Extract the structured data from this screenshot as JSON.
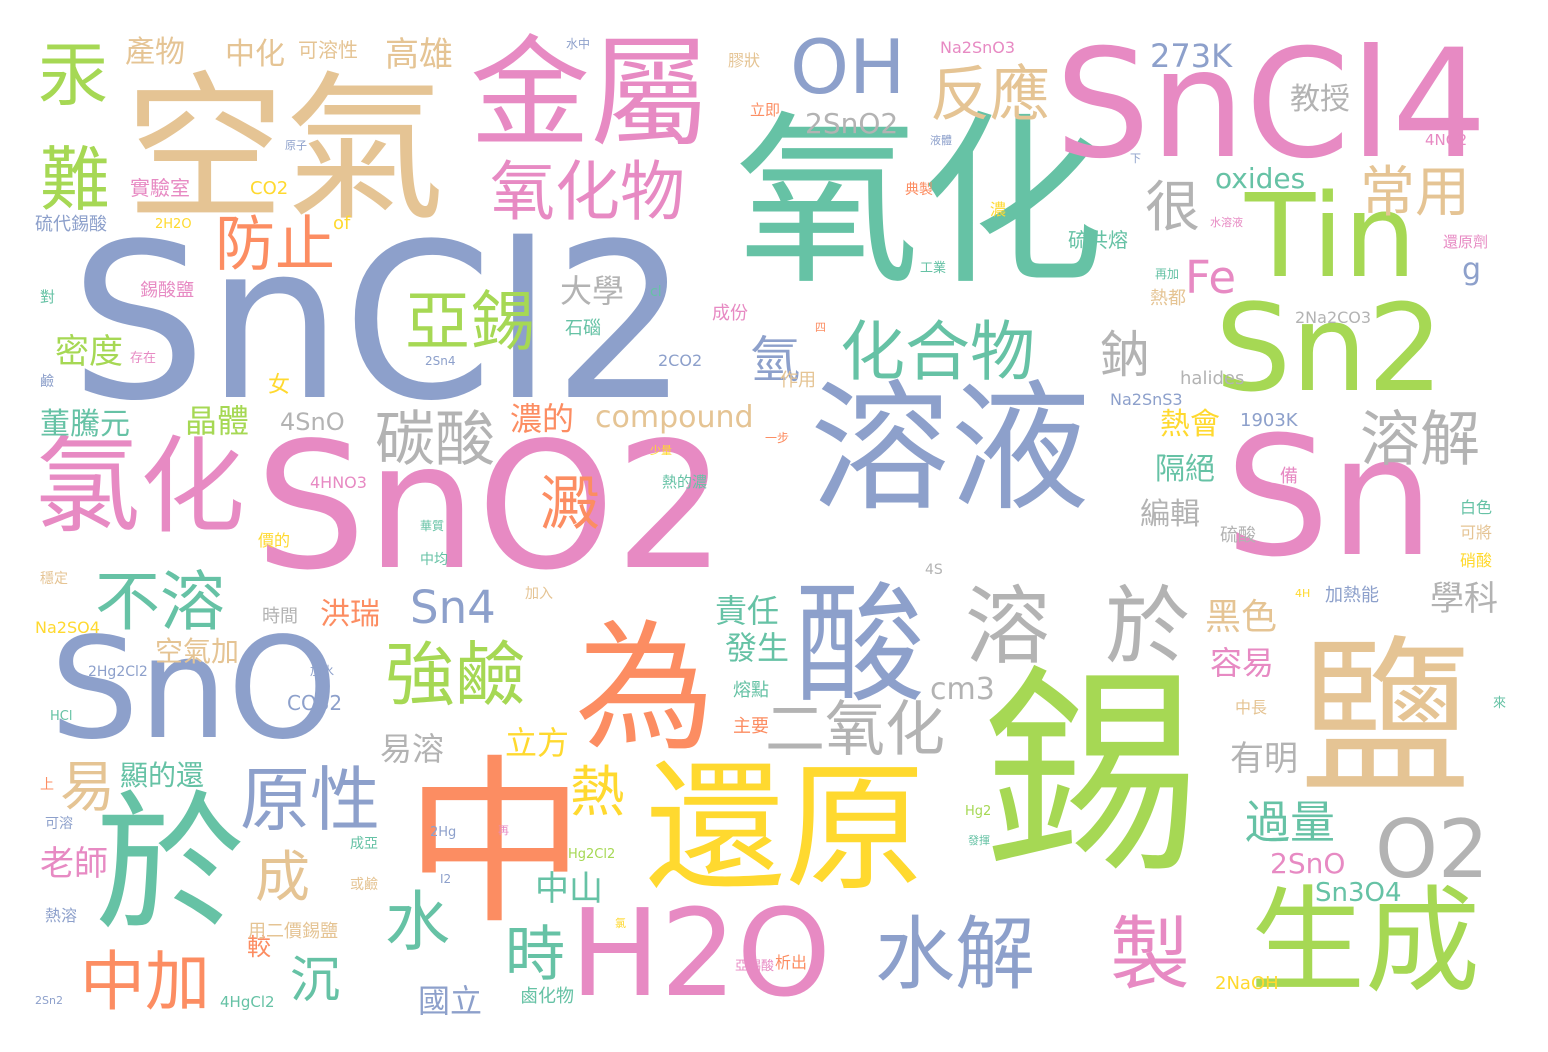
{
  "colors": {
    "background": "#ffffff",
    "palette": [
      "#66c2a5",
      "#fc8d62",
      "#8da0cb",
      "#e78ac3",
      "#a6d854",
      "#ffd92f",
      "#e5c494",
      "#b3b3b3"
    ]
  },
  "words": [
    {
      "text": "SnCl2",
      "color": "#8da0cb"
    },
    {
      "text": "氧化",
      "color": "#66c2a5"
    },
    {
      "text": "SnO2",
      "color": "#e78ac3"
    },
    {
      "text": "錫",
      "color": "#a6d854"
    },
    {
      "text": "空氣",
      "color": "#e5c494"
    },
    {
      "text": "SnCl4",
      "color": "#e78ac3"
    },
    {
      "text": "溶液",
      "color": "#8da0cb"
    },
    {
      "text": "Sn",
      "color": "#e78ac3"
    },
    {
      "text": "還原",
      "color": "#ffd92f"
    },
    {
      "text": "中",
      "color": "#fc8d62"
    },
    {
      "text": "SnO",
      "color": "#8da0cb"
    },
    {
      "text": "鹽",
      "color": "#e5c494"
    },
    {
      "text": "H2O",
      "color": "#e78ac3"
    },
    {
      "text": "於",
      "color": "#66c2a5"
    },
    {
      "text": "為",
      "color": "#fc8d62"
    },
    {
      "text": "金屬",
      "color": "#e78ac3"
    },
    {
      "text": "Tin",
      "color": "#a6d854"
    },
    {
      "text": "Sn2",
      "color": "#a6d854"
    },
    {
      "text": "酸",
      "color": "#8da0cb"
    },
    {
      "text": "生成",
      "color": "#a6d854"
    },
    {
      "text": "OH",
      "color": "#8da0cb"
    },
    {
      "text": "氯化",
      "color": "#e78ac3"
    },
    {
      "text": "溶",
      "color": "#b3b3b3"
    },
    {
      "text": "於",
      "color": "#b3b3b3"
    },
    {
      "text": "O2",
      "color": "#b3b3b3"
    },
    {
      "text": "水解",
      "color": "#8da0cb"
    },
    {
      "text": "氧化物",
      "color": "#e78ac3"
    },
    {
      "text": "化合物",
      "color": "#66c2a5"
    },
    {
      "text": "強鹼",
      "color": "#a6d854"
    },
    {
      "text": "原性",
      "color": "#8da0cb"
    },
    {
      "text": "反應",
      "color": "#e5c494"
    },
    {
      "text": "製",
      "color": "#e78ac3"
    },
    {
      "text": "中加",
      "color": "#fc8d62"
    },
    {
      "text": "亞錫",
      "color": "#a6d854"
    },
    {
      "text": "不溶",
      "color": "#66c2a5"
    },
    {
      "text": "防止",
      "color": "#fc8d62"
    },
    {
      "text": "碳酸",
      "color": "#b3b3b3"
    },
    {
      "text": "溶解",
      "color": "#b3b3b3"
    },
    {
      "text": "二氧化",
      "color": "#b3b3b3"
    },
    {
      "text": "常用",
      "color": "#e5c494"
    },
    {
      "text": "汞",
      "color": "#a6d854"
    },
    {
      "text": "難",
      "color": "#a6d854"
    },
    {
      "text": "澱",
      "color": "#fc8d62"
    },
    {
      "text": "水",
      "color": "#66c2a5"
    },
    {
      "text": "成",
      "color": "#e5c494"
    },
    {
      "text": "易",
      "color": "#e5c494"
    },
    {
      "text": "熱",
      "color": "#ffd92f"
    },
    {
      "text": "時",
      "color": "#66c2a5"
    },
    {
      "text": "沉",
      "color": "#66c2a5"
    },
    {
      "text": "很",
      "color": "#b3b3b3"
    },
    {
      "text": "鈉",
      "color": "#b3b3b3"
    },
    {
      "text": "氫",
      "color": "#8da0cb"
    },
    {
      "text": "Sn4",
      "color": "#8da0cb"
    },
    {
      "text": "Fe",
      "color": "#e78ac3"
    },
    {
      "text": "過量",
      "color": "#66c2a5"
    },
    {
      "text": "273K",
      "color": "#8da0cb"
    },
    {
      "text": "2SnO2",
      "color": "#b3b3b3"
    },
    {
      "text": "oxides",
      "color": "#66c2a5"
    },
    {
      "text": "compound",
      "color": "#e5c494"
    },
    {
      "text": "cm3",
      "color": "#b3b3b3"
    },
    {
      "text": "2SnO",
      "color": "#e78ac3"
    },
    {
      "text": "Sn3O4",
      "color": "#66c2a5"
    },
    {
      "text": "4SnO",
      "color": "#b3b3b3"
    },
    {
      "text": "CO32",
      "color": "#8da0cb"
    },
    {
      "text": "halides",
      "color": "#b3b3b3"
    },
    {
      "text": "1903K",
      "color": "#8da0cb"
    },
    {
      "text": "Na2SnS3",
      "color": "#8da0cb"
    },
    {
      "text": "2Na2CO3",
      "color": "#b3b3b3"
    },
    {
      "text": "Na2SnO3",
      "color": "#e78ac3"
    },
    {
      "text": "4NO2",
      "color": "#e78ac3"
    },
    {
      "text": "4HNO3",
      "color": "#e78ac3"
    },
    {
      "text": "Na2SO4",
      "color": "#ffd92f"
    },
    {
      "text": "2Hg2Cl2",
      "color": "#8da0cb"
    },
    {
      "text": "HCl",
      "color": "#66c2a5"
    },
    {
      "text": "CO2",
      "color": "#ffd92f"
    },
    {
      "text": "2H2O",
      "color": "#ffd92f"
    },
    {
      "text": "of",
      "color": "#ffd92f"
    },
    {
      "text": "cl",
      "color": "#66c2a5"
    },
    {
      "text": "g",
      "color": "#8da0cb"
    },
    {
      "text": "女",
      "color": "#ffd92f"
    },
    {
      "text": "2CO2",
      "color": "#8da0cb"
    },
    {
      "text": "2Sn4",
      "color": "#8da0cb"
    },
    {
      "text": "4S",
      "color": "#b3b3b3"
    },
    {
      "text": "4H",
      "color": "#ffd92f"
    },
    {
      "text": "Hg2",
      "color": "#a6d854"
    },
    {
      "text": "Hg2Cl2",
      "color": "#a6d854"
    },
    {
      "text": "2Hg",
      "color": "#8da0cb"
    },
    {
      "text": "I2",
      "color": "#8da0cb"
    },
    {
      "text": "4HgCl2",
      "color": "#66c2a5"
    },
    {
      "text": "2NaOH",
      "color": "#ffd92f"
    },
    {
      "text": "2Sn2",
      "color": "#8da0cb"
    },
    {
      "text": "產物",
      "color": "#e5c494"
    },
    {
      "text": "中化",
      "color": "#e5c494"
    },
    {
      "text": "可溶性",
      "color": "#e5c494"
    },
    {
      "text": "高雄",
      "color": "#e5c494"
    },
    {
      "text": "教授",
      "color": "#b3b3b3"
    },
    {
      "text": "大學",
      "color": "#b3b3b3"
    },
    {
      "text": "密度",
      "color": "#a6d854"
    },
    {
      "text": "董騰元",
      "color": "#66c2a5"
    },
    {
      "text": "晶體",
      "color": "#a6d854"
    },
    {
      "text": "濃的",
      "color": "#fc8d62"
    },
    {
      "text": "熱會",
      "color": "#ffd92f"
    },
    {
      "text": "隔絕",
      "color": "#66c2a5"
    },
    {
      "text": "編輯",
      "color": "#b3b3b3"
    },
    {
      "text": "洪瑞",
      "color": "#fc8d62"
    },
    {
      "text": "責任",
      "color": "#66c2a5"
    },
    {
      "text": "發生",
      "color": "#66c2a5"
    },
    {
      "text": "黑色",
      "color": "#e5c494"
    },
    {
      "text": "容易",
      "color": "#e78ac3"
    },
    {
      "text": "學科",
      "color": "#b3b3b3"
    },
    {
      "text": "空氣加",
      "color": "#e5c494"
    },
    {
      "text": "易溶",
      "color": "#b3b3b3"
    },
    {
      "text": "立方",
      "color": "#ffd92f"
    },
    {
      "text": "有明",
      "color": "#b3b3b3"
    },
    {
      "text": "顯的還",
      "color": "#66c2a5"
    },
    {
      "text": "老師",
      "color": "#e78ac3"
    },
    {
      "text": "中山",
      "color": "#66c2a5"
    },
    {
      "text": "國立",
      "color": "#8da0cb"
    },
    {
      "text": "較",
      "color": "#fc8d62"
    },
    {
      "text": "實驗室",
      "color": "#e78ac3"
    },
    {
      "text": "硫代錫酸",
      "color": "#8da0cb"
    },
    {
      "text": "錫酸鹽",
      "color": "#e78ac3"
    },
    {
      "text": "硫共熔",
      "color": "#66c2a5"
    },
    {
      "text": "熱都",
      "color": "#e5c494"
    },
    {
      "text": "石碯",
      "color": "#66c2a5"
    },
    {
      "text": "成份",
      "color": "#e78ac3"
    },
    {
      "text": "作用",
      "color": "#e5c494"
    },
    {
      "text": "加熱能",
      "color": "#8da0cb"
    },
    {
      "text": "白色",
      "color": "#66c2a5"
    },
    {
      "text": "可將",
      "color": "#e5c494"
    },
    {
      "text": "硝酸",
      "color": "#ffd92f"
    },
    {
      "text": "硫酸",
      "color": "#b3b3b3"
    },
    {
      "text": "還原劑",
      "color": "#e78ac3"
    },
    {
      "text": "亞錫酸",
      "color": "#e78ac3"
    },
    {
      "text": "鹵化物",
      "color": "#66c2a5"
    },
    {
      "text": "析出",
      "color": "#fc8d62"
    },
    {
      "text": "用二價錫鹽",
      "color": "#e5c494"
    },
    {
      "text": "主要",
      "color": "#fc8d62"
    },
    {
      "text": "熔點",
      "color": "#66c2a5"
    },
    {
      "text": "時間",
      "color": "#b3b3b3"
    },
    {
      "text": "中長",
      "color": "#e5c494"
    },
    {
      "text": "成亞",
      "color": "#66c2a5"
    },
    {
      "text": "或鹼",
      "color": "#e5c494"
    },
    {
      "text": "中均",
      "color": "#66c2a5"
    },
    {
      "text": "加入",
      "color": "#e5c494"
    },
    {
      "text": "穩定",
      "color": "#e5c494"
    },
    {
      "text": "價的",
      "color": "#ffd92f"
    },
    {
      "text": "上",
      "color": "#fc8d62"
    },
    {
      "text": "可溶",
      "color": "#8da0cb"
    },
    {
      "text": "熱溶",
      "color": "#8da0cb"
    },
    {
      "text": "對",
      "color": "#66c2a5"
    },
    {
      "text": "鹼",
      "color": "#8da0cb"
    },
    {
      "text": "存在",
      "color": "#e78ac3"
    },
    {
      "text": "水中",
      "color": "#8da0cb"
    },
    {
      "text": "膠狀",
      "color": "#e5c494"
    },
    {
      "text": "立即",
      "color": "#fc8d62"
    },
    {
      "text": "液體",
      "color": "#8da0cb"
    },
    {
      "text": "原子",
      "color": "#8da0cb"
    },
    {
      "text": "典製",
      "color": "#fc8d62"
    },
    {
      "text": "濃",
      "color": "#ffd92f"
    },
    {
      "text": "工業",
      "color": "#66c2a5"
    },
    {
      "text": "再加",
      "color": "#66c2a5"
    },
    {
      "text": "熱的濃",
      "color": "#66c2a5"
    },
    {
      "text": "一步",
      "color": "#fc8d62"
    },
    {
      "text": "少量",
      "color": "#ffd92f"
    },
    {
      "text": "加水",
      "color": "#8da0cb"
    },
    {
      "text": "再",
      "color": "#e78ac3"
    },
    {
      "text": "發揮",
      "color": "#66c2a5"
    },
    {
      "text": "水溶液",
      "color": "#e78ac3"
    },
    {
      "text": "備",
      "color": "#e78ac3"
    },
    {
      "text": "華質",
      "color": "#66c2a5"
    },
    {
      "text": "來",
      "color": "#66c2a5"
    },
    {
      "text": "下",
      "color": "#8da0cb"
    },
    {
      "text": "四",
      "color": "#fc8d62"
    },
    {
      "text": "氯",
      "color": "#ffd92f"
    }
  ]
}
